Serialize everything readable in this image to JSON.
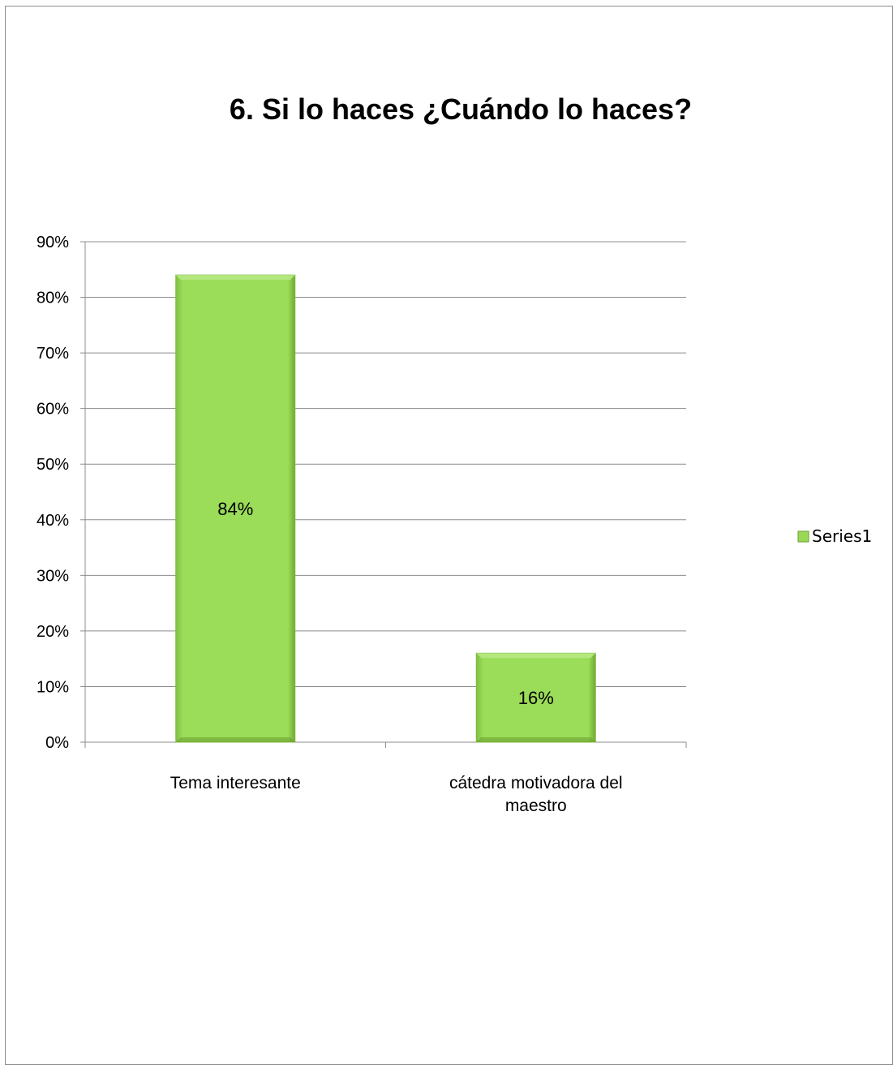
{
  "colors": {
    "bar_fill": "#99d955",
    "bar_edge": "#7fb83e",
    "bar_dark": "#6a9d30",
    "grid": "#8c8c8c"
  },
  "chart_data": {
    "type": "bar",
    "title": "6. Si lo haces ¿Cuándo lo haces?",
    "categories": [
      [
        "Tema interesante"
      ],
      [
        "cátedra motivadora del",
        "maestro"
      ]
    ],
    "series": [
      {
        "name": "Series1",
        "values": [
          84,
          16
        ],
        "data_labels": [
          "84%",
          "16%"
        ]
      }
    ],
    "ylim": [
      0,
      90
    ],
    "yticks": [
      0,
      10,
      20,
      30,
      40,
      50,
      60,
      70,
      80,
      90
    ],
    "ytick_labels": [
      "0%",
      "10%",
      "20%",
      "30%",
      "40%",
      "50%",
      "60%",
      "70%",
      "80%",
      "90%"
    ],
    "xlabel": "",
    "ylabel": "",
    "grid": true,
    "legend": "right"
  }
}
